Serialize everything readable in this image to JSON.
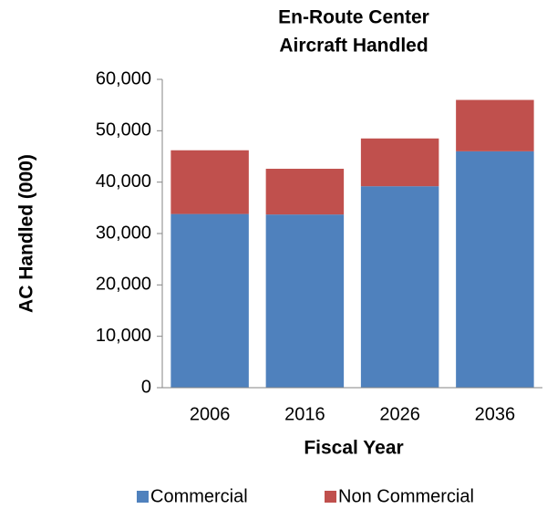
{
  "chart_data": {
    "type": "stacked_bar",
    "title": [
      "En-Route Center",
      "Aircraft Handled"
    ],
    "categories": [
      "2006",
      "2016",
      "2026",
      "2036"
    ],
    "series": [
      {
        "name": "Commercial",
        "color": "#4f81bd",
        "values": [
          33800,
          33700,
          39200,
          46000
        ]
      },
      {
        "name": "Non Commercial",
        "color": "#c0504d",
        "values": [
          12400,
          8900,
          9300,
          10000
        ]
      }
    ],
    "ylim": [
      0,
      60000
    ],
    "yticks": [
      0,
      {
        "value": 10000,
        "label": "10,000"
      },
      {
        "value": 20000,
        "label": "20,000"
      },
      {
        "value": 30000,
        "label": "30,000"
      },
      {
        "value": 40000,
        "label": "40,000"
      },
      {
        "value": 50000,
        "label": "50,000"
      },
      {
        "value": 60000,
        "label": "60,000"
      }
    ],
    "xlabel": "Fiscal Year",
    "ylabel": "AC Handled (000)",
    "grid": false,
    "legend": "bottom"
  }
}
